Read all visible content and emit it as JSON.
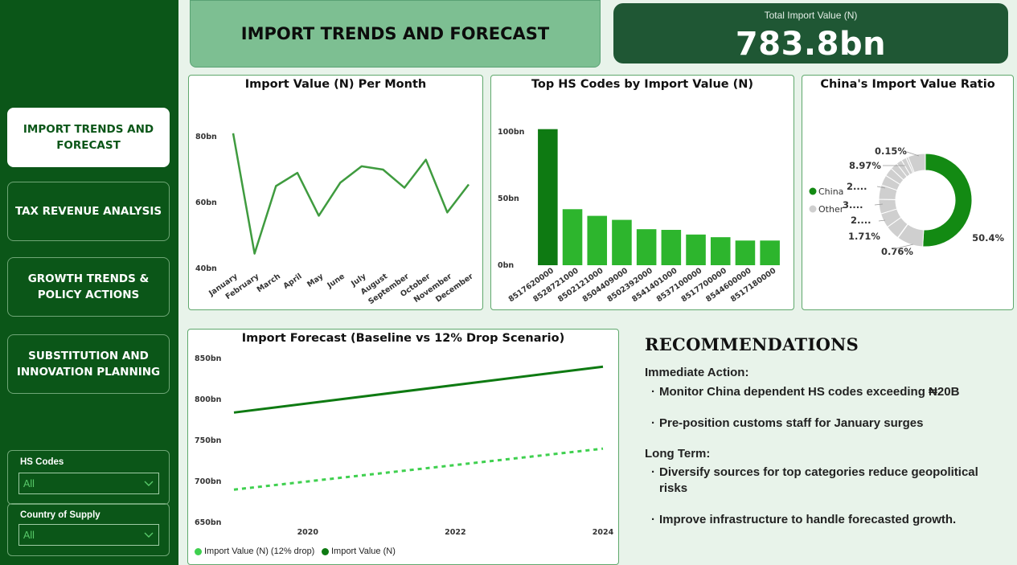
{
  "sidebar": {
    "nav": [
      {
        "label": "IMPORT TRENDS AND FORECAST",
        "active": true
      },
      {
        "label": "TAX REVENUE ANALYSIS",
        "active": false
      },
      {
        "label": "GROWTH TRENDS & POLICY ACTIONS",
        "active": false
      },
      {
        "label": "SUBSTITUTION AND INNOVATION PLANNING",
        "active": false
      }
    ],
    "filters": [
      {
        "label": "HS Codes",
        "value": "All"
      },
      {
        "label": "Country of Supply",
        "value": "All"
      }
    ]
  },
  "header": {
    "title": "IMPORT TRENDS AND FORECAST",
    "kpi_label": "Total Import Value (N)",
    "kpi_value": "783.8bn"
  },
  "colors": {
    "dark_green": "#0b5618",
    "line_green": "#3f9b3f",
    "bar_dark": "#0e7a12",
    "bar_light": "#2db52d",
    "forecast_dark": "#0e7a12",
    "forecast_light": "#3fd04f",
    "donut_china": "#138a13",
    "donut_other": "#cfcfcf"
  },
  "chart_data": [
    {
      "type": "line",
      "title": "Import Value (N) Per Month",
      "categories": [
        "January",
        "February",
        "March",
        "April",
        "May",
        "June",
        "July",
        "August",
        "September",
        "October",
        "November",
        "December"
      ],
      "values": [
        81,
        44.5,
        65,
        69,
        56,
        66,
        71,
        70,
        64.5,
        73,
        57,
        65.5
      ],
      "y_ticks": [
        "40bn",
        "60bn",
        "80bn"
      ],
      "ylim": [
        40,
        80
      ]
    },
    {
      "type": "bar",
      "title": "Top HS Codes by Import Value (N)",
      "categories": [
        "8517620000",
        "8528721000",
        "8502121000",
        "8504409000",
        "8502392000",
        "8541401000",
        "8537100000",
        "8517700000",
        "8544600000",
        "8517180000"
      ],
      "values": [
        102,
        42,
        37,
        34,
        27,
        26.5,
        23,
        21,
        18.5,
        18.5
      ],
      "y_ticks": [
        "0bn",
        "50bn",
        "100bn"
      ],
      "ylim": [
        0,
        100
      ]
    },
    {
      "type": "pie",
      "title": "China's Import Value Ratio",
      "legend": [
        "China",
        "Other"
      ],
      "slices": [
        50.4,
        8.97,
        0.15,
        5.0,
        5.0,
        5.0,
        5.0,
        3.5,
        3.0,
        2.5,
        2.0,
        1.71,
        0.76,
        6.0
      ],
      "labels": [
        "50.4%",
        "8.97%",
        "0.15%",
        "2....",
        "3....",
        "2....",
        "1.71%",
        "0.76%"
      ]
    },
    {
      "type": "line",
      "title": "Import Forecast (Baseline vs 12% Drop Scenario)",
      "x": [
        2019,
        2024
      ],
      "x_ticks": [
        "2020",
        "2022",
        "2024"
      ],
      "y_ticks": [
        "650bn",
        "700bn",
        "750bn",
        "800bn",
        "850bn"
      ],
      "ylim": [
        650,
        850
      ],
      "series": [
        {
          "name": "Import Value (N) (12% drop)",
          "values": [
            690,
            740
          ]
        },
        {
          "name": "Import Value (N)",
          "values": [
            784,
            840
          ]
        }
      ]
    }
  ],
  "recommendations": {
    "title": "RECOMMENDATIONS",
    "immediate_heading": "Immediate Action:",
    "immediate": [
      "Monitor China dependent HS codes exceeding ₦20B",
      "Pre-position customs staff for January surges"
    ],
    "longterm_heading": "Long Term:",
    "longterm": [
      "Diversify sources for top categories reduce geopolitical risks",
      "Improve infrastructure to handle forecasted growth."
    ]
  }
}
